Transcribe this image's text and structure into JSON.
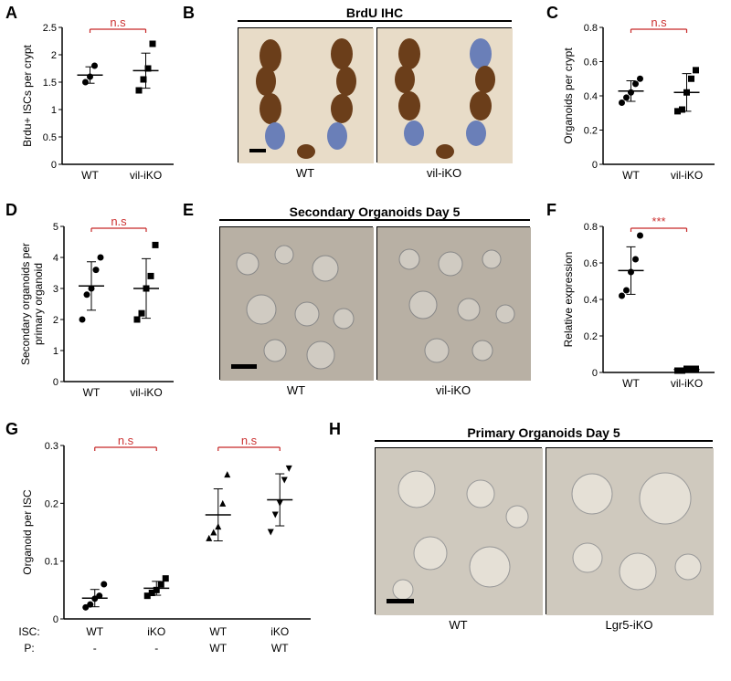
{
  "panelA": {
    "label": "A",
    "type": "scatter",
    "ylabel": "Brdu+ ISCs per crypt",
    "ylim": [
      0,
      2.5
    ],
    "yticks": [
      0,
      0.5,
      1.0,
      1.5,
      2.0,
      2.5
    ],
    "categories": [
      "WT",
      "vil-iKO"
    ],
    "sig": "n.s",
    "series": [
      {
        "x": 0,
        "values": [
          1.5,
          1.6,
          1.8
        ],
        "mean": 1.63,
        "sd": 0.15,
        "marker": "circle",
        "fill": "#000"
      },
      {
        "x": 1,
        "values": [
          1.35,
          1.55,
          1.75,
          2.2
        ],
        "mean": 1.71,
        "sd": 0.32,
        "marker": "square",
        "fill": "#000"
      }
    ]
  },
  "panelB": {
    "label": "B",
    "title": "BrdU IHC",
    "images": [
      "WT",
      "vil-iKO"
    ]
  },
  "panelC": {
    "label": "C",
    "type": "scatter",
    "ylabel": "Organoids per crypt",
    "ylim": [
      0,
      0.8
    ],
    "yticks": [
      0,
      0.2,
      0.4,
      0.6,
      0.8
    ],
    "categories": [
      "WT",
      "vil-iKO"
    ],
    "sig": "n.s",
    "series": [
      {
        "x": 0,
        "values": [
          0.36,
          0.39,
          0.42,
          0.47,
          0.5
        ],
        "mean": 0.428,
        "sd": 0.06,
        "marker": "circle",
        "fill": "#000"
      },
      {
        "x": 1,
        "values": [
          0.31,
          0.32,
          0.42,
          0.5,
          0.55
        ],
        "mean": 0.42,
        "sd": 0.11,
        "marker": "square",
        "fill": "#000"
      }
    ]
  },
  "panelD": {
    "label": "D",
    "type": "scatter",
    "ylabel_line1": "Secondary organoids per",
    "ylabel_line2": "primary organoid",
    "ylim": [
      0,
      5
    ],
    "yticks": [
      0,
      1,
      2,
      3,
      4,
      5
    ],
    "categories": [
      "WT",
      "vil-iKO"
    ],
    "sig": "n.s",
    "series": [
      {
        "x": 0,
        "values": [
          2.0,
          2.8,
          3.0,
          3.6,
          4.0
        ],
        "mean": 3.08,
        "sd": 0.78,
        "marker": "circle",
        "fill": "#000"
      },
      {
        "x": 1,
        "values": [
          2.0,
          2.2,
          3.0,
          3.4,
          4.4
        ],
        "mean": 3.0,
        "sd": 0.96,
        "marker": "square",
        "fill": "#000"
      }
    ]
  },
  "panelE": {
    "label": "E",
    "title": "Secondary Organoids Day 5",
    "images": [
      "WT",
      "vil-iKO"
    ]
  },
  "panelF": {
    "label": "F",
    "type": "scatter",
    "ylabel": "Relative expression",
    "ylim": [
      0,
      0.8
    ],
    "yticks": [
      0,
      0.2,
      0.4,
      0.6,
      0.8
    ],
    "categories": [
      "WT",
      "vil-iKO"
    ],
    "sig": "***",
    "series": [
      {
        "x": 0,
        "values": [
          0.42,
          0.45,
          0.55,
          0.62,
          0.75
        ],
        "mean": 0.558,
        "sd": 0.13,
        "marker": "circle",
        "fill": "#000"
      },
      {
        "x": 1,
        "values": [
          0.01,
          0.01,
          0.02,
          0.02,
          0.02
        ],
        "mean": 0.016,
        "sd": 0.006,
        "marker": "square",
        "fill": "#000"
      }
    ]
  },
  "panelG": {
    "label": "G",
    "type": "scatter",
    "ylabel": "Organoid per ISC",
    "ylim": [
      0,
      0.3
    ],
    "yticks": [
      0,
      0.1,
      0.2,
      0.3
    ],
    "sig": [
      "n.s",
      "n.s"
    ],
    "isc_row_label": "ISC:",
    "p_row_label": "P:",
    "isc_row": [
      "WT",
      "iKO",
      "WT",
      "iKO"
    ],
    "p_row": [
      "-",
      "-",
      "WT",
      "WT"
    ],
    "series": [
      {
        "x": 0,
        "values": [
          0.02,
          0.025,
          0.035,
          0.04,
          0.06
        ],
        "mean": 0.036,
        "sd": 0.015,
        "marker": "circle",
        "fill": "#000"
      },
      {
        "x": 1,
        "values": [
          0.04,
          0.045,
          0.05,
          0.06,
          0.07
        ],
        "mean": 0.053,
        "sd": 0.012,
        "marker": "square",
        "fill": "#000"
      },
      {
        "x": 2,
        "values": [
          0.14,
          0.15,
          0.16,
          0.2,
          0.25
        ],
        "mean": 0.18,
        "sd": 0.045,
        "marker": "triangle",
        "fill": "#000"
      },
      {
        "x": 3,
        "values": [
          0.15,
          0.18,
          0.2,
          0.24,
          0.26
        ],
        "mean": 0.206,
        "sd": 0.045,
        "marker": "invtriangle",
        "fill": "#000"
      }
    ]
  },
  "panelH": {
    "label": "H",
    "title": "Primary Organoids Day 5",
    "images": [
      "WT",
      "Lgr5-iKO"
    ]
  },
  "colors": {
    "axis": "#000000",
    "sig": "#c62828",
    "ihc_brown": "#6b3e1a",
    "ihc_blue": "#6a7fb8",
    "ihc_bg": "#e8dcc8",
    "organoid_bg": "#b8b0a4",
    "organoid_shape": "#d0cbc2"
  }
}
